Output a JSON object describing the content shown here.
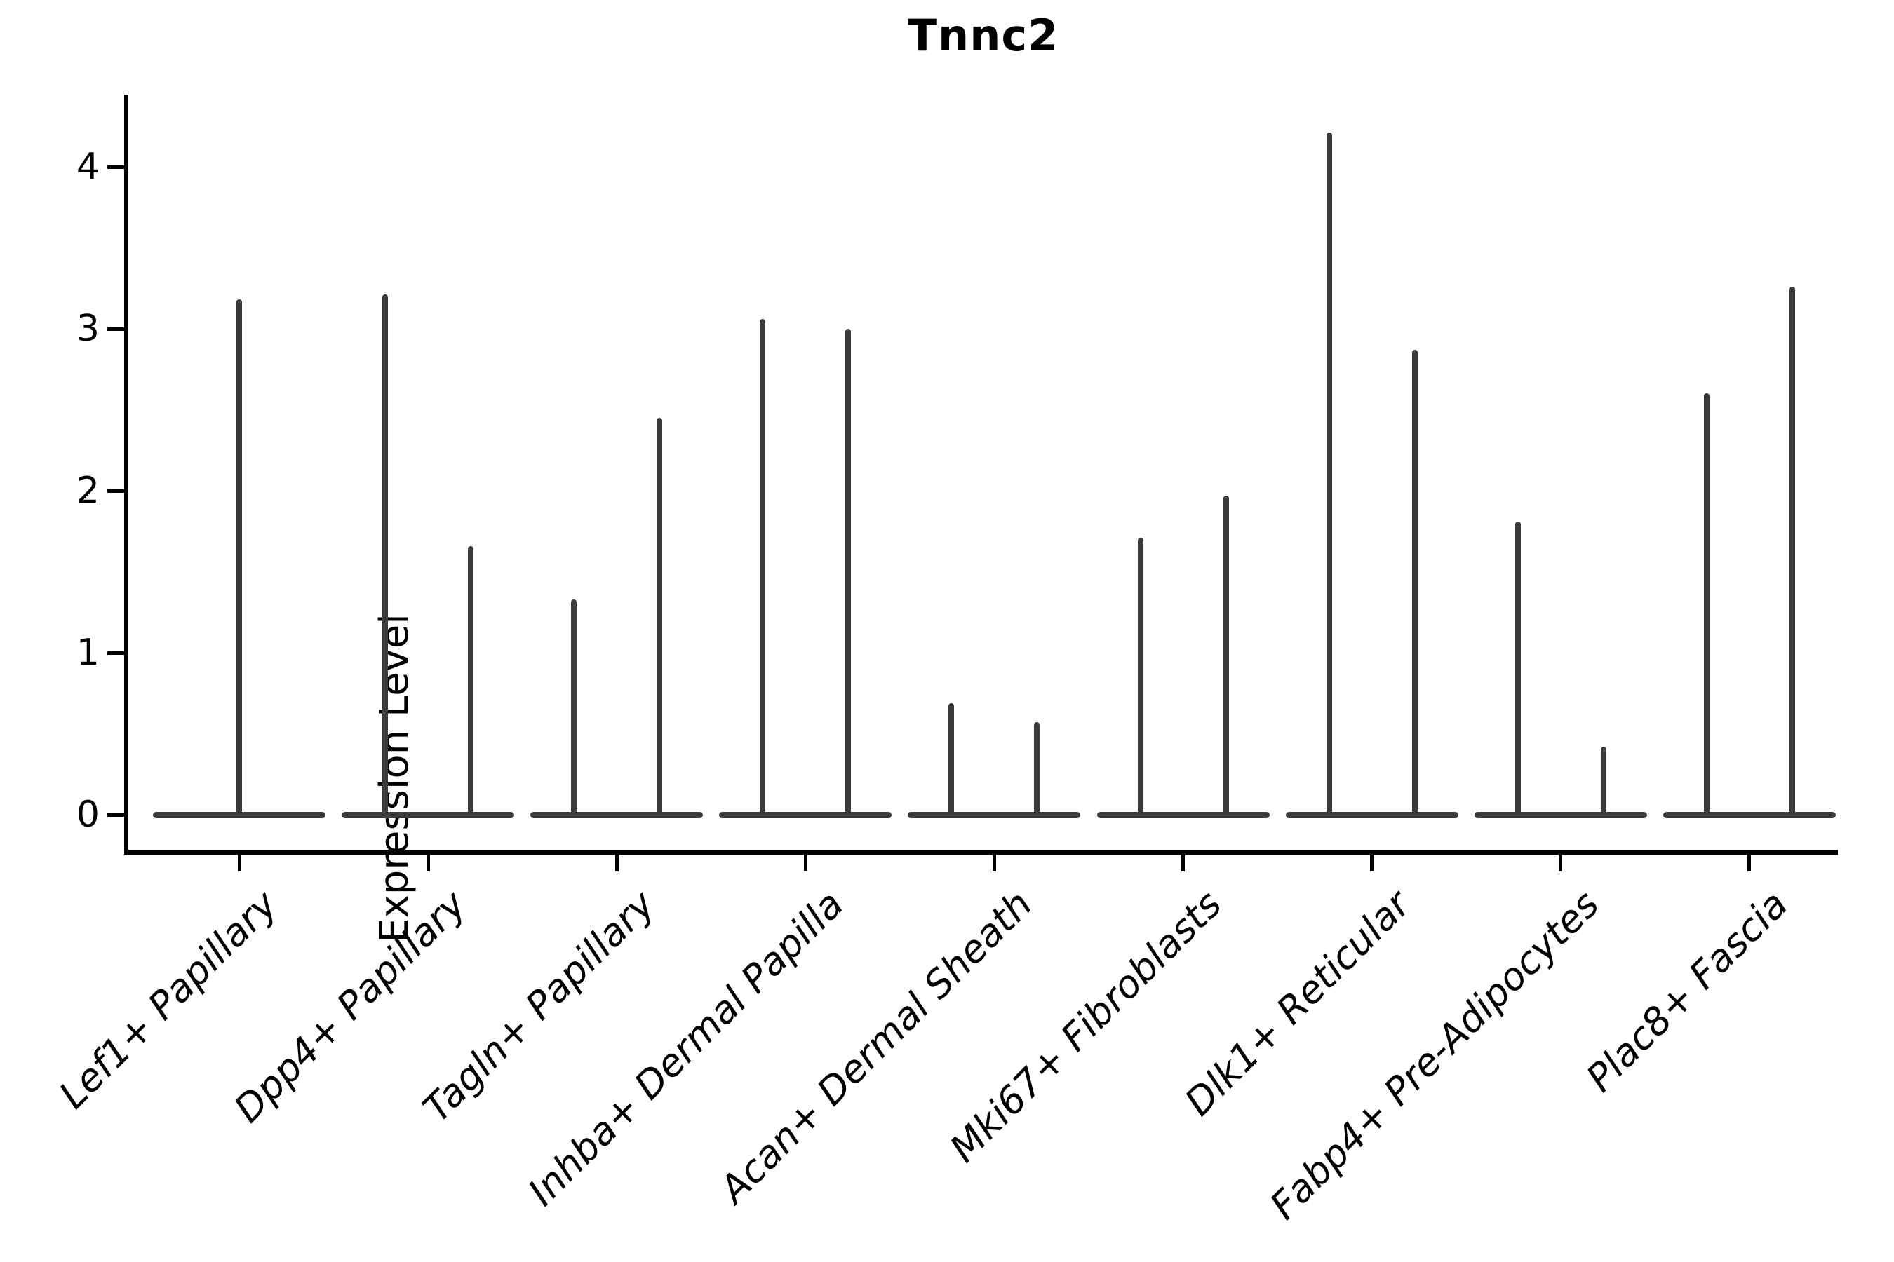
{
  "title": "Tnnc2",
  "y_axis": {
    "label": "Expression Level",
    "ticks": [
      "0",
      "1",
      "2",
      "3",
      "4"
    ]
  },
  "chart_data": {
    "type": "violin",
    "title": "Tnnc2",
    "ylabel": "Expression Level",
    "ylim": [
      -0.25,
      4.45
    ],
    "yticks": [
      0,
      1,
      2,
      3,
      4
    ],
    "grid": false,
    "legend": "none",
    "categories": [
      "Lef1+ Papillary",
      "Dpp4+ Papillary",
      "Tagln+ Papillary",
      "Inhba+ Dermal Papilla",
      "Acan+ Dermal Sheath",
      "Mki67+ Fibroblasts",
      "Dlk1+ Reticular",
      "Fabp4+ Pre-Adipocytes",
      "Plac8+ Fascia"
    ],
    "series": [
      {
        "category": "Lef1+ Papillary",
        "spike_max_values": [
          3.18
        ]
      },
      {
        "category": "Dpp4+ Papillary",
        "spike_max_values": [
          3.21,
          1.66
        ]
      },
      {
        "category": "Tagln+ Papillary",
        "spike_max_values": [
          1.33,
          2.45
        ]
      },
      {
        "category": "Inhba+ Dermal Papilla",
        "spike_max_values": [
          3.06,
          3.0
        ]
      },
      {
        "category": "Acan+ Dermal Sheath",
        "spike_max_values": [
          0.69,
          0.57
        ]
      },
      {
        "category": "Mki67+ Fibroblasts",
        "spike_max_values": [
          1.71,
          1.97
        ]
      },
      {
        "category": "Dlk1+ Reticular",
        "spike_max_values": [
          4.21,
          2.87
        ]
      },
      {
        "category": "Fabp4+ Pre-Adipocytes",
        "spike_max_values": [
          1.81,
          0.42
        ]
      },
      {
        "category": "Plac8+ Fascia",
        "spike_max_values": [
          2.6,
          3.26
        ]
      }
    ],
    "violin_shape_note": "each violin is a wide flat base at expression 0 with a thin vertical spike up to its max value",
    "violin_color": "#3b3b3b",
    "axis_color": "#000000",
    "background_color": "#ffffff"
  }
}
